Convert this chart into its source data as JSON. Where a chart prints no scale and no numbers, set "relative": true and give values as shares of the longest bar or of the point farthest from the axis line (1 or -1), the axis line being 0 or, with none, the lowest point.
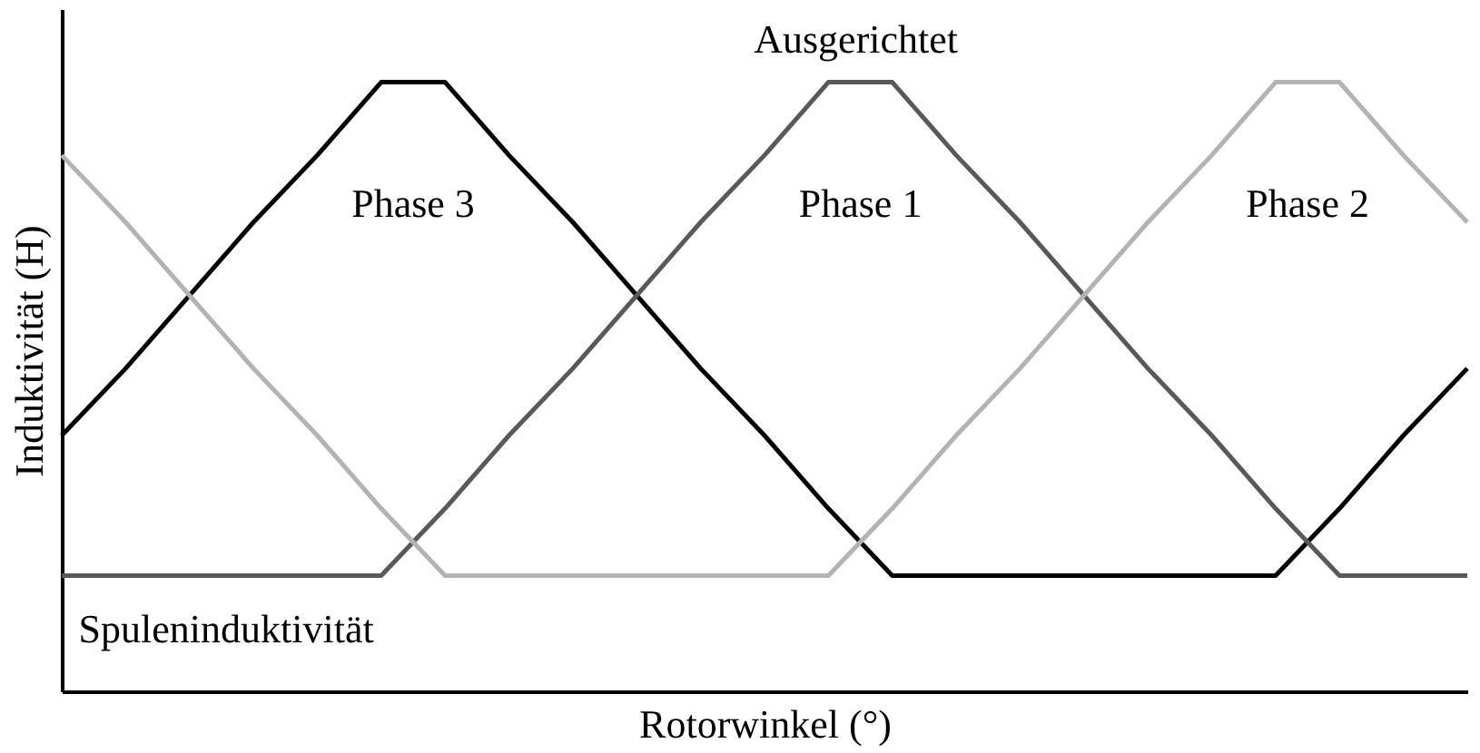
{
  "chart_data": {
    "type": "line",
    "relative": true,
    "xlabel": "Rotorwinkel (°)",
    "ylabel": "Induktivität (H)",
    "annotations": [
      "Ausgerichtet",
      "Spuleninduktivität"
    ],
    "categories": [
      null,
      null,
      null,
      null,
      null,
      null,
      null,
      null,
      null,
      null,
      null,
      null,
      null,
      null,
      null,
      null,
      null,
      null,
      null,
      null,
      null,
      null,
      null
    ],
    "grid": false,
    "line_style": "solid",
    "series": [
      {
        "name": "Phase 3",
        "color": "#000000",
        "values": [
          0.42,
          0.53,
          0.65,
          0.77,
          0.88,
          1.0,
          1.0,
          0.88,
          0.77,
          0.65,
          0.53,
          0.42,
          0.3,
          0.19,
          0.19,
          0.19,
          0.19,
          0.19,
          0.19,
          0.19,
          0.3,
          0.42,
          0.53
        ]
      },
      {
        "name": "Phase 1",
        "color": "#595959",
        "values": [
          0.19,
          0.19,
          0.19,
          0.19,
          0.19,
          0.19,
          0.3,
          0.42,
          0.53,
          0.65,
          0.77,
          0.88,
          1.0,
          1.0,
          0.88,
          0.77,
          0.65,
          0.53,
          0.42,
          0.3,
          0.19,
          0.19,
          0.19
        ]
      },
      {
        "name": "Phase 2",
        "color": "#b3b3b3",
        "values": [
          0.88,
          0.77,
          0.65,
          0.53,
          0.42,
          0.3,
          0.19,
          0.19,
          0.19,
          0.19,
          0.19,
          0.19,
          0.19,
          0.3,
          0.42,
          0.53,
          0.65,
          0.77,
          0.88,
          1.0,
          1.0,
          0.88,
          0.77
        ]
      }
    ]
  }
}
